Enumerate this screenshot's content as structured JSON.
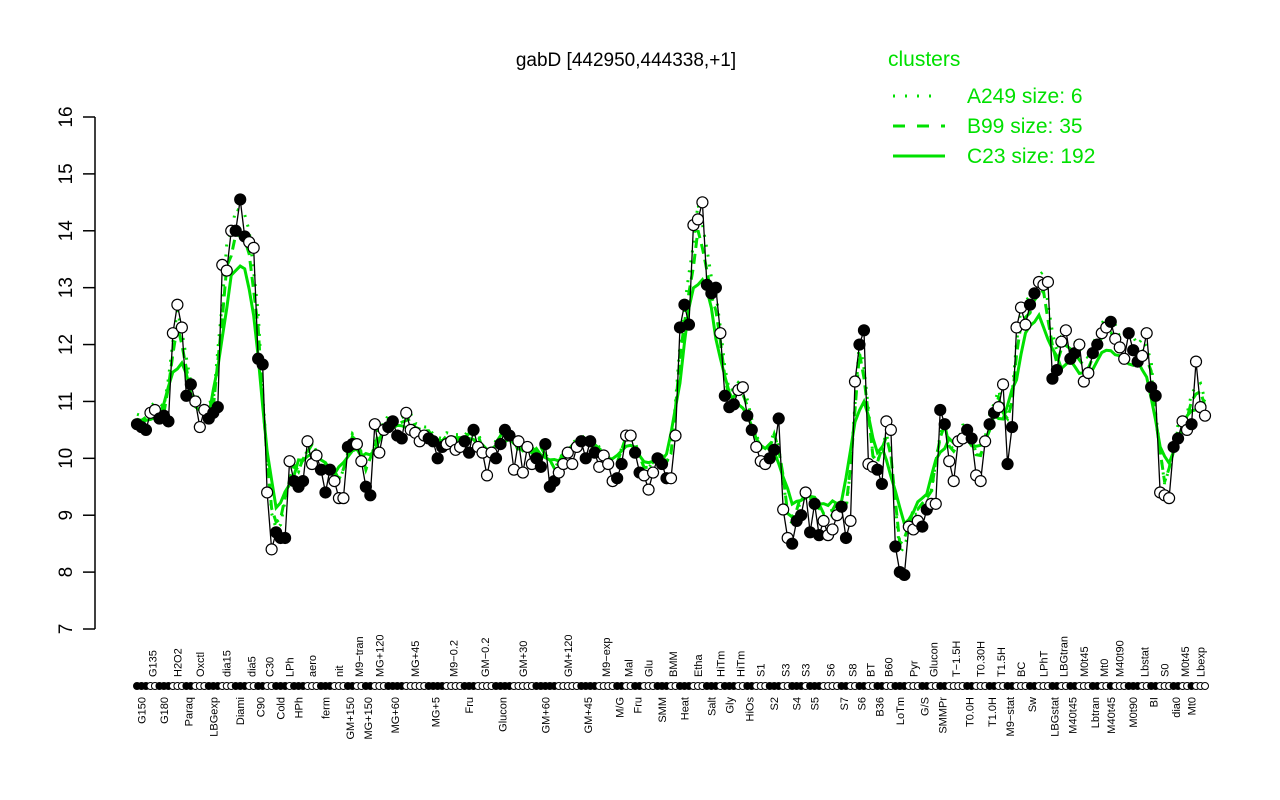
{
  "chart_data": {
    "type": "line",
    "title": "gabD [442950,444338,+1]",
    "xlabel": "",
    "ylabel": "",
    "ylim": [
      7,
      16
    ],
    "yticks": [
      7,
      8,
      9,
      10,
      11,
      12,
      13,
      14,
      15,
      16
    ],
    "legend": {
      "title": "clusters",
      "placement": "top-right",
      "color": "#00e000",
      "entries": [
        {
          "label": "A249 size: 6",
          "style": "dotted"
        },
        {
          "label": "B99 size: 35",
          "style": "dashed"
        },
        {
          "label": "C23 size: 192",
          "style": "solid"
        }
      ]
    },
    "groups": [
      {
        "label": "G150",
        "values": [
          10.6,
          10.55,
          10.5
        ]
      },
      {
        "label": "G135",
        "values": [
          10.8,
          10.85
        ]
      },
      {
        "label": "G180",
        "values": [
          10.7,
          10.75,
          10.65
        ]
      },
      {
        "label": "H2O2",
        "values": [
          12.2,
          12.7,
          12.3
        ]
      },
      {
        "label": "Paraq",
        "values": [
          11.1,
          11.3
        ]
      },
      {
        "label": "Oxctl",
        "values": [
          11.0,
          10.55,
          10.85
        ]
      },
      {
        "label": "LBGexp",
        "values": [
          10.7,
          10.8,
          10.9
        ]
      },
      {
        "label": "dia15",
        "values": [
          13.4,
          13.3,
          14.0
        ]
      },
      {
        "label": "Diami",
        "values": [
          14.0,
          14.55,
          13.9
        ]
      },
      {
        "label": "dia5",
        "values": [
          13.8,
          13.7
        ]
      },
      {
        "label": "C90",
        "values": [
          11.75,
          11.65
        ]
      },
      {
        "label": "C30",
        "values": [
          9.4,
          8.4
        ]
      },
      {
        "label": "Cold",
        "values": [
          8.7,
          8.6,
          8.6
        ]
      },
      {
        "label": "LPh",
        "values": [
          9.95
        ]
      },
      {
        "label": "HPh",
        "values": [
          9.6,
          9.5,
          9.6
        ]
      },
      {
        "label": "aero",
        "values": [
          10.3,
          9.9,
          10.05
        ]
      },
      {
        "label": "ferm",
        "values": [
          9.8,
          9.4,
          9.8
        ]
      },
      {
        "label": "nit",
        "values": [
          9.6,
          9.3,
          9.3
        ]
      },
      {
        "label": "GM+150",
        "values": [
          10.2,
          10.25
        ]
      },
      {
        "label": "M9−tran",
        "values": [
          10.25,
          9.95
        ]
      },
      {
        "label": "MG+150",
        "values": [
          9.5,
          9.35
        ]
      },
      {
        "label": "MG+120",
        "values": [
          10.6,
          10.1,
          10.5
        ]
      },
      {
        "label": "MG+60",
        "values": [
          10.55,
          10.65,
          10.4,
          10.35
        ]
      },
      {
        "label": "MG+45",
        "values": [
          10.8,
          10.5,
          10.45,
          10.3,
          10.4
        ]
      },
      {
        "label": "MG+5",
        "values": [
          10.35,
          10.3,
          10.0,
          10.2
        ]
      },
      {
        "label": "M9−0.2",
        "values": [
          10.25,
          10.3,
          10.15,
          10.2
        ]
      },
      {
        "label": "Fru",
        "values": [
          10.3,
          10.1,
          10.5
        ]
      },
      {
        "label": "GM−0.2",
        "values": [
          10.2,
          10.1,
          9.7,
          10.1
        ]
      },
      {
        "label": "Glucon",
        "values": [
          10.0,
          10.25,
          10.5,
          10.4
        ]
      },
      {
        "label": "GM+30",
        "values": [
          9.8,
          10.3,
          9.75,
          10.2,
          9.9
        ]
      },
      {
        "label": "GM+60",
        "values": [
          10.0,
          9.85,
          10.25,
          9.5,
          9.6
        ]
      },
      {
        "label": "GM+120",
        "values": [
          9.75,
          9.9,
          10.1,
          9.9,
          10.2
        ]
      },
      {
        "label": "GM+45",
        "values": [
          10.3,
          10.0,
          10.3,
          10.1
        ]
      },
      {
        "label": "M9−exp",
        "values": [
          9.85,
          10.05,
          9.9,
          9.6
        ]
      },
      {
        "label": "M/G",
        "values": [
          9.65,
          9.9
        ]
      },
      {
        "label": "Mal",
        "values": [
          10.4,
          10.4
        ]
      },
      {
        "label": "Fru",
        "values": [
          10.1,
          9.75
        ]
      },
      {
        "label": "Glu",
        "values": [
          9.7,
          9.45,
          9.75
        ]
      },
      {
        "label": "SMM",
        "values": [
          10.0,
          9.9,
          9.65
        ]
      },
      {
        "label": "BMM",
        "values": [
          9.65,
          10.4
        ]
      },
      {
        "label": "Heat",
        "values": [
          12.3,
          12.7,
          12.35
        ]
      },
      {
        "label": "Etha",
        "values": [
          14.1,
          14.2,
          14.5
        ]
      },
      {
        "label": "Salt",
        "values": [
          13.05,
          12.9,
          13.0
        ]
      },
      {
        "label": "HiTm",
        "values": [
          12.2
        ]
      },
      {
        "label": "Gly",
        "values": [
          11.1,
          10.9,
          10.95
        ]
      },
      {
        "label": "HiTm",
        "values": [
          11.2,
          11.25
        ]
      },
      {
        "label": "HiOs",
        "values": [
          10.75,
          10.5
        ]
      },
      {
        "label": "S1",
        "values": [
          10.2,
          9.95,
          9.9
        ]
      },
      {
        "label": "S2",
        "values": [
          10.0,
          10.15,
          10.7
        ]
      },
      {
        "label": "S3",
        "values": [
          9.1,
          8.6
        ]
      },
      {
        "label": "S4",
        "values": [
          8.5,
          8.9,
          9.0
        ]
      },
      {
        "label": "S3",
        "values": [
          9.4
        ]
      },
      {
        "label": "S5",
        "values": [
          8.7,
          9.2,
          8.65
        ]
      },
      {
        "label": "S6",
        "values": [
          8.9,
          8.65,
          8.75,
          9.0
        ]
      },
      {
        "label": "S7",
        "values": [
          9.15,
          8.6
        ]
      },
      {
        "label": "S8",
        "values": [
          8.9,
          11.35
        ]
      },
      {
        "label": "S6",
        "values": [
          12.0,
          12.25
        ]
      },
      {
        "label": "BT",
        "values": [
          9.9,
          9.85
        ]
      },
      {
        "label": "B36",
        "values": [
          9.8,
          9.55
        ]
      },
      {
        "label": "B60",
        "values": [
          10.65,
          10.5
        ]
      },
      {
        "label": "LoTm",
        "values": [
          8.45,
          8.0,
          7.95
        ]
      },
      {
        "label": "Pyr",
        "values": [
          8.8,
          8.75,
          8.9
        ]
      },
      {
        "label": "G/S",
        "values": [
          8.8,
          9.1
        ]
      },
      {
        "label": "Glucon",
        "values": [
          9.2,
          9.2
        ]
      },
      {
        "label": "SMMPr",
        "values": [
          10.85,
          10.6
        ]
      },
      {
        "label": "T−1.5H",
        "values": [
          9.95,
          9.6,
          10.3,
          10.35
        ]
      },
      {
        "label": "T0.0H",
        "values": [
          10.5,
          10.35
        ]
      },
      {
        "label": "T0.30H",
        "values": [
          9.7,
          9.6,
          10.3
        ]
      },
      {
        "label": "T1.0H",
        "values": [
          10.6,
          10.8
        ]
      },
      {
        "label": "T1.5H",
        "values": [
          10.9,
          11.3
        ]
      },
      {
        "label": "M9−stat",
        "values": [
          9.9,
          10.55
        ]
      },
      {
        "label": "BC",
        "values": [
          12.3,
          12.65,
          12.35
        ]
      },
      {
        "label": "Sw",
        "values": [
          12.7,
          12.9
        ]
      },
      {
        "label": "LPhT",
        "values": [
          13.1,
          13.05,
          13.1
        ]
      },
      {
        "label": "LBGstat",
        "values": [
          11.4,
          11.55
        ]
      },
      {
        "label": "LBGtran",
        "values": [
          12.05,
          12.25
        ]
      },
      {
        "label": "M40t45",
        "values": [
          11.75,
          11.85
        ]
      },
      {
        "label": "M0t45",
        "values": [
          12.0,
          11.35,
          11.5
        ]
      },
      {
        "label": "Lbtran",
        "values": [
          11.85,
          12.0
        ]
      },
      {
        "label": "Mt0",
        "values": [
          12.2,
          12.3
        ]
      },
      {
        "label": "M40t45",
        "values": [
          12.4
        ]
      },
      {
        "label": "M40t90",
        "values": [
          12.1,
          11.95,
          11.75
        ]
      },
      {
        "label": "M0t90",
        "values": [
          12.2,
          11.9,
          11.7
        ]
      },
      {
        "label": "Lbstat",
        "values": [
          11.8,
          12.2
        ]
      },
      {
        "label": "BI",
        "values": [
          11.25,
          11.1
        ]
      },
      {
        "label": "S0",
        "values": [
          9.4,
          9.35,
          9.3
        ]
      },
      {
        "label": "dia0",
        "values": [
          10.2,
          10.35
        ]
      },
      {
        "label": "M0t45",
        "values": [
          10.65,
          10.5
        ]
      },
      {
        "label": "Mt0",
        "values": [
          10.6
        ]
      },
      {
        "label": "Lbexp",
        "values": [
          11.7,
          10.9,
          10.75
        ]
      }
    ]
  }
}
